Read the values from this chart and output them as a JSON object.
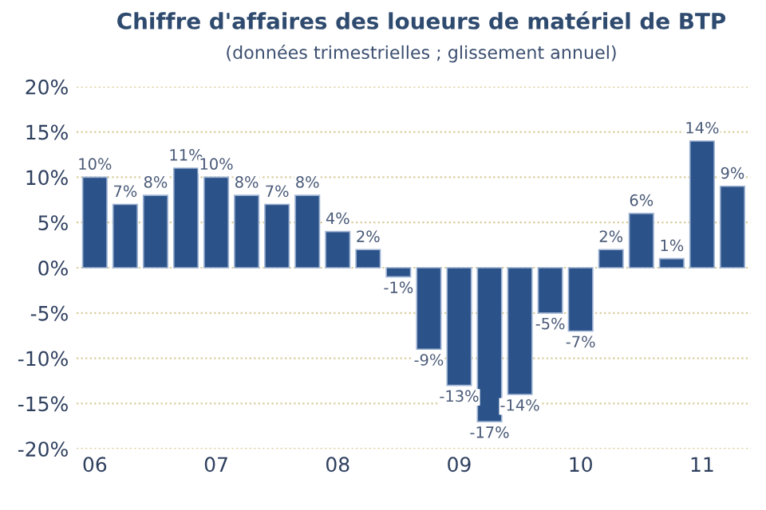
{
  "chart_data": {
    "type": "bar",
    "title": "Chiffre d'affaires des loueurs de matériel de BTP",
    "subtitle": "(données trimestrielles ; glissement annuel)",
    "categories": [
      "06",
      null,
      null,
      null,
      "07",
      null,
      null,
      null,
      "08",
      null,
      null,
      null,
      "09",
      null,
      null,
      null,
      "10",
      null,
      null,
      null,
      "11",
      null
    ],
    "values": [
      10,
      7,
      8,
      11,
      10,
      8,
      7,
      8,
      4,
      2,
      -1,
      -9,
      -13,
      -17,
      -14,
      -5,
      -7,
      2,
      6,
      1,
      14,
      9
    ],
    "value_labels": [
      "10%",
      "7%",
      "8%",
      "11%",
      "10%",
      "8%",
      "7%",
      "8%",
      "4%",
      "2%",
      "-1%",
      "-9%",
      "-13%",
      "-17%",
      "-14%",
      "-5%",
      "-7%",
      "2%",
      "6%",
      "1%",
      "14%",
      "9%"
    ],
    "color": "#2b5289",
    "ylim": [
      -20,
      20
    ],
    "yticks": [
      {
        "value": -20,
        "label": "-20%"
      },
      {
        "value": -15,
        "label": "-15%"
      },
      {
        "value": -10,
        "label": "-10%"
      },
      {
        "value": -5,
        "label": "-5%"
      },
      {
        "value": 0,
        "label": "0%"
      },
      {
        "value": 5,
        "label": "5%"
      },
      {
        "value": 10,
        "label": "10%"
      },
      {
        "value": 15,
        "label": "15%"
      },
      {
        "value": 20,
        "label": "20%"
      }
    ],
    "grid": "y"
  }
}
